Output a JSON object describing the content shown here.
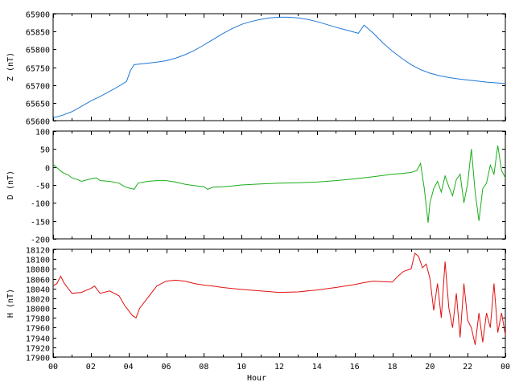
{
  "chart_data": [
    {
      "type": "line",
      "ylabel": "Z (nT)",
      "xlabel": "",
      "ylim": [
        65600,
        65900
      ],
      "yticks": [
        65600,
        65650,
        65700,
        65750,
        65800,
        65850,
        65900
      ],
      "xlim": [
        0,
        24
      ],
      "grid": false,
      "color": "#1f78d6",
      "series": [
        {
          "x": [
            0,
            0.5,
            1,
            1.5,
            2,
            2.5,
            3,
            3.5,
            3.9,
            4.1,
            4.3,
            5,
            5.5,
            6,
            6.5,
            7,
            7.5,
            8,
            8.5,
            9,
            9.5,
            10,
            10.5,
            11,
            11.5,
            12,
            12.5,
            13,
            13.5,
            14,
            14.5,
            15,
            15.5,
            16,
            16.2,
            16.5,
            17,
            17.5,
            18,
            18.5,
            19,
            19.5,
            20,
            20.5,
            21,
            21.5,
            22,
            22.5,
            23,
            23.5,
            24
          ],
          "values": [
            65608,
            65615,
            65625,
            65640,
            65655,
            65668,
            65682,
            65697,
            65710,
            65740,
            65757,
            65761,
            65764,
            65768,
            65775,
            65785,
            65797,
            65812,
            65828,
            65844,
            65858,
            65870,
            65878,
            65884,
            65888,
            65890,
            65890,
            65888,
            65884,
            65878,
            65870,
            65862,
            65855,
            65848,
            65845,
            65868,
            65845,
            65818,
            65795,
            65775,
            65757,
            65743,
            65733,
            65726,
            65721,
            65717,
            65714,
            65711,
            65708,
            65706,
            65704
          ]
        }
      ]
    },
    {
      "type": "line",
      "ylabel": "D (nT)",
      "xlabel": "",
      "ylim": [
        -200,
        100
      ],
      "yticks": [
        -200,
        -150,
        -100,
        -50,
        0,
        50,
        100
      ],
      "xlim": [
        0,
        24
      ],
      "grid": false,
      "color": "#1aad1a",
      "series": [
        {
          "x": [
            0,
            0.2,
            0.5,
            0.8,
            1,
            1.3,
            1.5,
            2,
            2.3,
            2.5,
            3,
            3.5,
            3.8,
            4,
            4.3,
            4.5,
            5,
            5.5,
            6,
            6.5,
            7,
            7.5,
            8,
            8.2,
            8.5,
            9,
            9.5,
            10,
            11,
            12,
            13,
            14,
            15,
            16,
            17,
            18,
            18.5,
            19,
            19.3,
            19.5,
            19.7,
            19.9,
            20,
            20.2,
            20.4,
            20.6,
            20.8,
            21,
            21.2,
            21.4,
            21.6,
            21.8,
            22,
            22.2,
            22.4,
            22.6,
            22.8,
            23,
            23.2,
            23.4,
            23.6,
            23.8,
            24
          ],
          "values": [
            8,
            -2,
            -15,
            -22,
            -30,
            -35,
            -40,
            -33,
            -30,
            -38,
            -40,
            -45,
            -55,
            -58,
            -62,
            -45,
            -40,
            -38,
            -38,
            -42,
            -48,
            -52,
            -55,
            -62,
            -56,
            -55,
            -53,
            -50,
            -47,
            -45,
            -44,
            -42,
            -38,
            -33,
            -27,
            -20,
            -18,
            -15,
            -10,
            10,
            -60,
            -155,
            -100,
            -60,
            -40,
            -70,
            -25,
            -55,
            -80,
            -35,
            -20,
            -100,
            -45,
            50,
            -70,
            -150,
            -60,
            -45,
            5,
            -20,
            60,
            -10,
            -30
          ]
        }
      ]
    },
    {
      "type": "line",
      "ylabel": "H (nT)",
      "xlabel": "Hour",
      "ylim": [
        17900,
        18120
      ],
      "yticks": [
        17900,
        17920,
        17940,
        17960,
        17980,
        18000,
        18020,
        18040,
        18060,
        18080,
        18100,
        18120
      ],
      "xlim": [
        0,
        24
      ],
      "xticks": [
        "00",
        "02",
        "04",
        "06",
        "08",
        "10",
        "12",
        "14",
        "16",
        "18",
        "20",
        "22",
        "00"
      ],
      "grid": false,
      "color": "#e01010",
      "series": [
        {
          "x": [
            0,
            0.2,
            0.4,
            0.6,
            0.8,
            1,
            1.5,
            2,
            2.2,
            2.5,
            3,
            3.5,
            3.8,
            4,
            4.2,
            4.4,
            4.6,
            5,
            5.5,
            6,
            6.5,
            7,
            7.5,
            8,
            8.5,
            9,
            9.5,
            10,
            11,
            12,
            13,
            14,
            15,
            16,
            16.5,
            17,
            17.5,
            18,
            18.3,
            18.6,
            19,
            19.2,
            19.4,
            19.6,
            19.8,
            20,
            20.2,
            20.4,
            20.6,
            20.8,
            21,
            21.2,
            21.4,
            21.6,
            21.8,
            22,
            22.2,
            22.4,
            22.6,
            22.8,
            23,
            23.2,
            23.4,
            23.6,
            23.8,
            24
          ],
          "values": [
            18045,
            18050,
            18065,
            18050,
            18040,
            18030,
            18032,
            18040,
            18045,
            18030,
            18035,
            18025,
            18005,
            17995,
            17985,
            17980,
            18000,
            18020,
            18045,
            18055,
            18057,
            18055,
            18050,
            18047,
            18045,
            18042,
            18040,
            18038,
            18035,
            18032,
            18033,
            18037,
            18042,
            18048,
            18052,
            18055,
            18054,
            18053,
            18065,
            18075,
            18080,
            18112,
            18105,
            18082,
            18090,
            18060,
            17995,
            18050,
            17980,
            18095,
            18000,
            17960,
            18030,
            17940,
            18050,
            17975,
            17960,
            17925,
            17990,
            17930,
            17990,
            17960,
            18050,
            17950,
            17990,
            17945
          ]
        }
      ]
    }
  ]
}
